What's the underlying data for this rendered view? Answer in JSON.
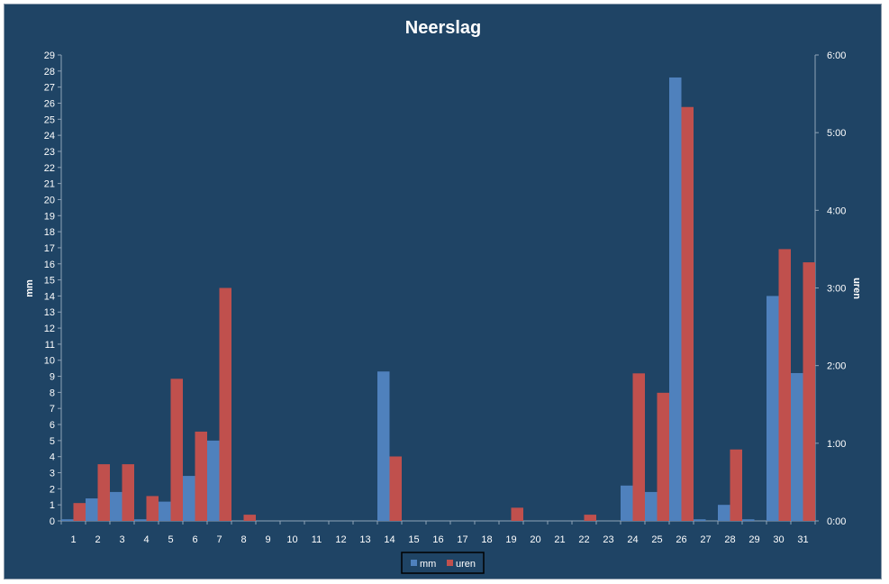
{
  "chart_data": {
    "type": "bar",
    "title": "Neerslag",
    "ylabel_left": "mm",
    "ylabel_right": "uren",
    "ylim_left": [
      0,
      29
    ],
    "ylim_right_hours": [
      0,
      6
    ],
    "yticks_right": [
      "0:00",
      "1:00",
      "2:00",
      "3:00",
      "4:00",
      "5:00",
      "6:00"
    ],
    "grid": false,
    "legend_position": "bottom",
    "categories": [
      "1",
      "2",
      "3",
      "4",
      "5",
      "6",
      "7",
      "8",
      "9",
      "10",
      "11",
      "12",
      "13",
      "14",
      "15",
      "16",
      "17",
      "18",
      "19",
      "20",
      "21",
      "22",
      "23",
      "24",
      "25",
      "26",
      "27",
      "28",
      "29",
      "30",
      "31"
    ],
    "series": [
      {
        "name": "mm",
        "axis": "left",
        "color": "#4f81bd",
        "values": [
          0.1,
          1.4,
          1.8,
          0.1,
          1.2,
          2.8,
          5.0,
          0,
          0,
          0,
          0,
          0,
          0,
          9.3,
          0,
          0,
          0,
          0,
          0,
          0,
          0,
          0,
          0,
          2.2,
          1.8,
          27.6,
          0.1,
          1.0,
          0.1,
          14.0,
          9.2
        ]
      },
      {
        "name": "uren",
        "axis": "right",
        "unit": "hours",
        "color": "#c0504d",
        "values": [
          0.23,
          0.73,
          0.73,
          0.32,
          1.83,
          1.15,
          3.0,
          0.08,
          0,
          0,
          0,
          0,
          0,
          0.83,
          0,
          0,
          0,
          0,
          0.17,
          0,
          0,
          0.08,
          0,
          1.9,
          1.65,
          5.33,
          0,
          0.92,
          0,
          3.5,
          3.33
        ]
      }
    ]
  }
}
